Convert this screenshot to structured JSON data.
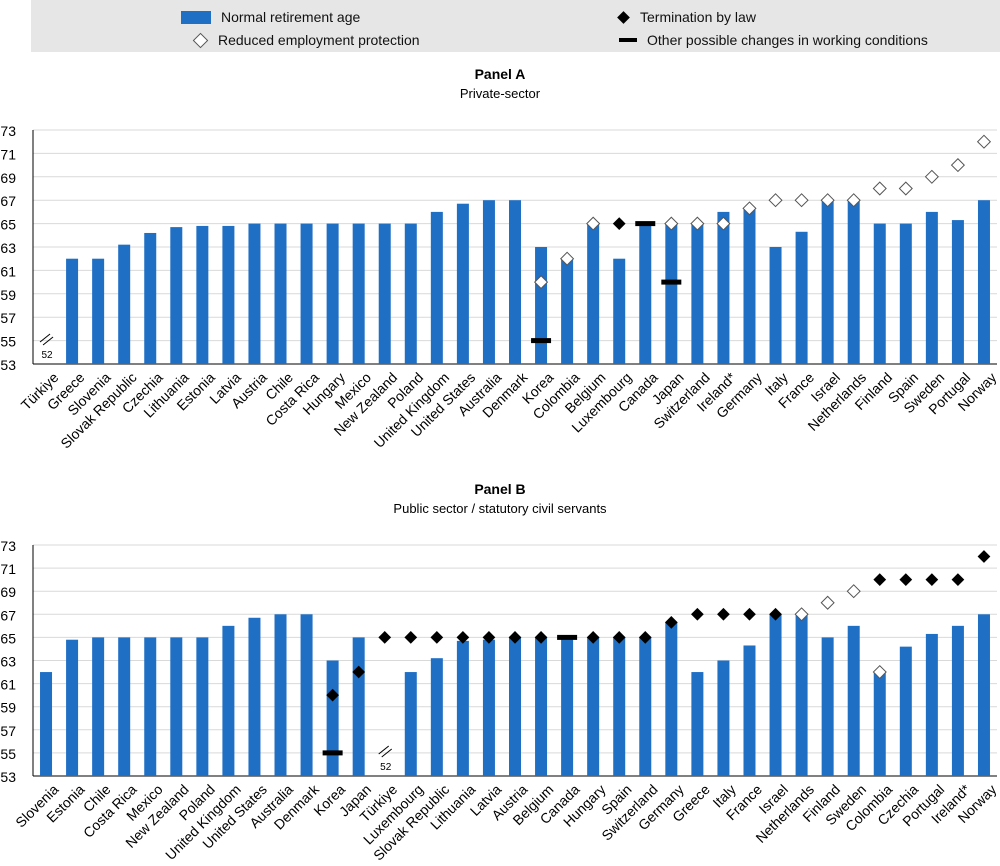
{
  "legend": {
    "bar_label": "Normal retirement age",
    "open_label": "Reduced employment protection",
    "filled_label": "Termination by law",
    "dash_label": "Other possible changes in working conditions"
  },
  "colors": {
    "bar": "#1f6fc5",
    "marker": "#000000",
    "legend_bg": "#e6e6e6"
  },
  "chart_data": [
    {
      "type": "bar",
      "title": "Panel A",
      "subtitle": "Private-sector",
      "ylim": [
        53,
        73
      ],
      "yticks": [
        53,
        55,
        57,
        59,
        61,
        63,
        65,
        67,
        69,
        71,
        73
      ],
      "axis_break_label": "52",
      "categories": [
        "Türkiye",
        "Greece",
        "Slovenia",
        "Slovak Republic",
        "Czechia",
        "Lithuania",
        "Estonia",
        "Latvia",
        "Austria",
        "Chile",
        "Costa Rica",
        "Hungary",
        "Mexico",
        "New Zealand",
        "Poland",
        "United Kingdom",
        "United States",
        "Australia",
        "Denmark",
        "Korea",
        "Colombia",
        "Belgium",
        "Luxembourg",
        "Canada",
        "Japan",
        "Switzerland",
        "Ireland*",
        "Germany",
        "Italy",
        "France",
        "Israel",
        "Netherlands",
        "Finland",
        "Spain",
        "Sweden",
        "Portugal",
        "Norway"
      ],
      "series": [
        {
          "name": "Normal retirement age",
          "values": [
            52,
            62,
            62,
            63.2,
            64.2,
            64.7,
            64.8,
            64.8,
            65,
            65,
            65,
            65,
            65,
            65,
            65,
            66,
            66.7,
            67,
            67,
            63,
            62,
            65,
            62,
            65,
            65,
            65,
            66,
            66.3,
            63,
            64.3,
            67,
            67,
            65,
            65,
            66,
            65.3,
            67
          ]
        },
        {
          "name": "Termination by law",
          "values": [
            null,
            null,
            null,
            null,
            null,
            null,
            null,
            null,
            null,
            null,
            null,
            null,
            null,
            null,
            null,
            null,
            null,
            null,
            null,
            null,
            null,
            null,
            65,
            null,
            null,
            null,
            null,
            null,
            null,
            null,
            null,
            null,
            null,
            null,
            null,
            null,
            null
          ]
        },
        {
          "name": "Reduced employment protection",
          "values": [
            null,
            null,
            null,
            null,
            null,
            null,
            null,
            null,
            null,
            null,
            null,
            null,
            null,
            null,
            null,
            null,
            null,
            null,
            null,
            60,
            62,
            65,
            null,
            null,
            65,
            65,
            65,
            66.3,
            67,
            67,
            67,
            67,
            68,
            68,
            69,
            70,
            72
          ]
        },
        {
          "name": "Other possible changes in working conditions",
          "values": [
            null,
            null,
            null,
            null,
            null,
            null,
            null,
            null,
            null,
            null,
            null,
            null,
            null,
            null,
            null,
            null,
            null,
            null,
            null,
            55,
            null,
            null,
            null,
            65,
            60,
            null,
            null,
            null,
            null,
            null,
            null,
            null,
            null,
            null,
            null,
            null,
            null
          ]
        }
      ]
    },
    {
      "type": "bar",
      "title": "Panel B",
      "subtitle": "Public sector / statutory civil servants",
      "ylim": [
        53,
        73
      ],
      "yticks": [
        53,
        55,
        57,
        59,
        61,
        63,
        65,
        67,
        69,
        71,
        73
      ],
      "axis_break_label": "52",
      "categories": [
        "Slovenia",
        "Estonia",
        "Chile",
        "Costa Rica",
        "Mexico",
        "New Zealand",
        "Poland",
        "United Kingdom",
        "United States",
        "Australia",
        "Denmark",
        "Korea",
        "Japan",
        "Türkiye",
        "Luxembourg",
        "Slovak Republic",
        "Lithuania",
        "Latvia",
        "Austria",
        "Belgium",
        "Canada",
        "Hungary",
        "Spain",
        "Switzerland",
        "Germany",
        "Greece",
        "Italy",
        "France",
        "Israel",
        "Netherlands",
        "Finland",
        "Sweden",
        "Colombia",
        "Czechia",
        "Portugal",
        "Ireland*",
        "Norway"
      ],
      "series": [
        {
          "name": "Normal retirement age",
          "values": [
            62,
            64.8,
            65,
            65,
            65,
            65,
            65,
            66,
            66.7,
            67,
            67,
            63,
            65,
            52,
            62,
            63.2,
            64.7,
            64.8,
            65,
            65,
            65,
            65,
            65,
            65,
            66.3,
            62,
            63,
            64.3,
            67,
            67,
            65,
            66,
            62,
            64.2,
            65.3,
            66,
            67
          ]
        },
        {
          "name": "Termination by law",
          "values": [
            null,
            null,
            null,
            null,
            null,
            null,
            null,
            null,
            null,
            null,
            null,
            60,
            62,
            65,
            65,
            65,
            65,
            65,
            65,
            65,
            null,
            65,
            65,
            65,
            66.3,
            67,
            67,
            67,
            67,
            null,
            null,
            null,
            70,
            70,
            70,
            70,
            72
          ]
        },
        {
          "name": "Reduced employment protection",
          "values": [
            null,
            null,
            null,
            null,
            null,
            null,
            null,
            null,
            null,
            null,
            null,
            null,
            null,
            null,
            null,
            null,
            null,
            null,
            null,
            null,
            null,
            null,
            null,
            null,
            null,
            null,
            null,
            null,
            null,
            67,
            68,
            69,
            62,
            null,
            null,
            null,
            null
          ]
        },
        {
          "name": "Other possible changes in working conditions",
          "values": [
            null,
            null,
            null,
            null,
            null,
            null,
            null,
            null,
            null,
            null,
            null,
            55,
            null,
            null,
            null,
            null,
            null,
            null,
            null,
            null,
            65,
            null,
            null,
            null,
            null,
            null,
            null,
            null,
            null,
            null,
            null,
            null,
            null,
            null,
            null,
            null,
            null
          ]
        }
      ]
    }
  ]
}
